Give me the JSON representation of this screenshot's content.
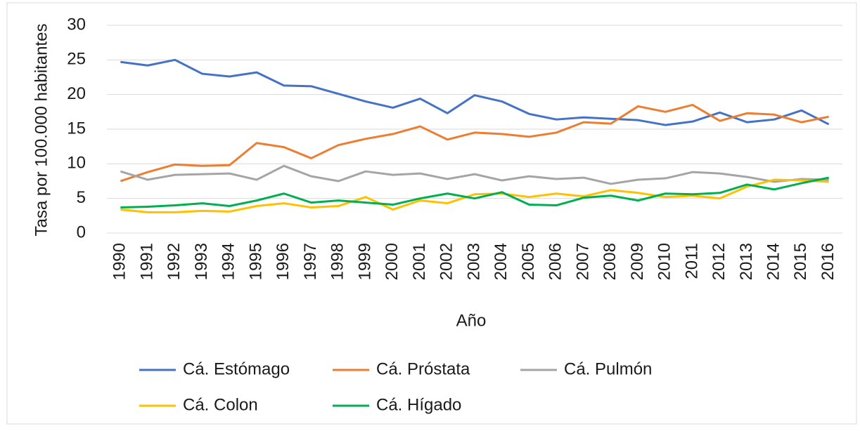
{
  "chart_data": {
    "type": "line",
    "y_label": "Tasa por 100.000 habitantes",
    "x_label": "Año",
    "categories": [
      "1990",
      "1991",
      "1992",
      "1993",
      "1994",
      "1995",
      "1996",
      "1997",
      "1998",
      "1999",
      "2000",
      "2001",
      "2002",
      "2003",
      "2004",
      "2005",
      "2006",
      "2007",
      "2008",
      "2009",
      "2010",
      "2011",
      "2012",
      "2013",
      "2014",
      "2015",
      "2016"
    ],
    "ylim": [
      0,
      30
    ],
    "yticks": [
      0,
      5,
      10,
      15,
      20,
      25,
      30
    ],
    "grid": true,
    "legend": "bottom",
    "series": [
      {
        "name": "Cá. Estómago",
        "color": "#4472c4",
        "values": [
          24.7,
          24.2,
          25.0,
          23.0,
          22.6,
          23.2,
          21.3,
          21.2,
          20.1,
          19.0,
          18.1,
          19.4,
          17.3,
          19.9,
          19.0,
          17.2,
          16.4,
          16.7,
          16.5,
          16.3,
          15.6,
          16.1,
          17.4,
          16.0,
          16.4,
          17.7,
          15.7
        ]
      },
      {
        "name": "Cá. Próstata",
        "color": "#ed7d31",
        "values": [
          7.5,
          8.8,
          9.9,
          9.7,
          9.8,
          13.0,
          12.4,
          10.8,
          12.7,
          13.6,
          14.3,
          15.4,
          13.5,
          14.5,
          14.3,
          13.9,
          14.5,
          16.0,
          15.8,
          18.3,
          17.5,
          18.5,
          16.2,
          17.3,
          17.1,
          16.0,
          16.8
        ]
      },
      {
        "name": "Cá. Pulmón",
        "color": "#a5a5a5",
        "values": [
          8.9,
          7.7,
          8.4,
          8.5,
          8.6,
          7.7,
          9.7,
          8.2,
          7.5,
          8.9,
          8.4,
          8.6,
          7.8,
          8.5,
          7.6,
          8.2,
          7.8,
          8.0,
          7.1,
          7.7,
          7.9,
          8.8,
          8.6,
          8.1,
          7.4,
          7.8,
          7.7
        ]
      },
      {
        "name": "Cá. Colon",
        "color": "#ffc000",
        "values": [
          3.4,
          3.0,
          3.0,
          3.2,
          3.1,
          3.9,
          4.3,
          3.7,
          3.9,
          5.2,
          3.4,
          4.7,
          4.3,
          5.6,
          5.7,
          5.2,
          5.7,
          5.3,
          6.2,
          5.8,
          5.2,
          5.4,
          5.0,
          6.7,
          7.7,
          7.6,
          7.4
        ]
      },
      {
        "name": "Cá. Hígado",
        "color": "#00b050",
        "values": [
          3.7,
          3.8,
          4.0,
          4.3,
          3.9,
          4.7,
          5.7,
          4.4,
          4.7,
          4.4,
          4.1,
          5.0,
          5.7,
          5.0,
          5.9,
          4.1,
          4.0,
          5.1,
          5.4,
          4.7,
          5.7,
          5.6,
          5.8,
          7.0,
          6.3,
          7.2,
          8.0
        ]
      }
    ]
  }
}
